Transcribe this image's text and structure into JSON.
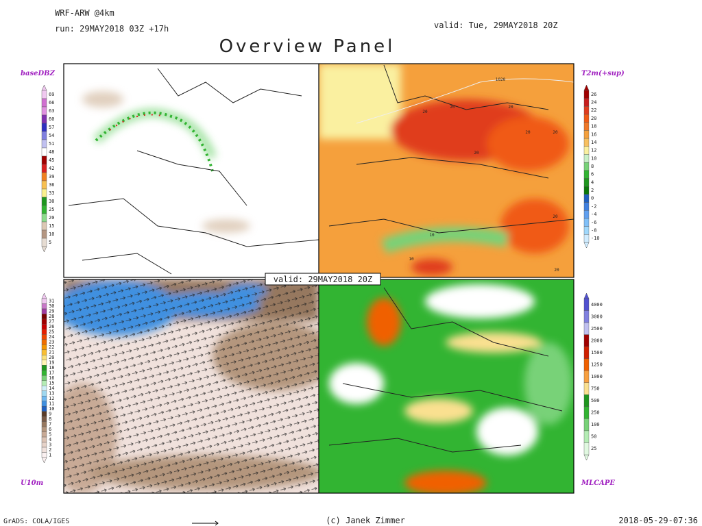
{
  "header": {
    "model": "WRF-ARW @4km",
    "run": "run: 29MAY2018 03Z +17h",
    "valid": "valid: Tue, 29MAY2018 20Z",
    "title": "Overview Panel"
  },
  "valid_box": "valid: 29MAY2018 20Z",
  "panels": [
    {
      "label": "baseDBZ",
      "ticks": [
        69,
        66,
        63,
        60,
        57,
        54,
        51,
        48,
        45,
        42,
        39,
        36,
        33,
        30,
        25,
        20,
        15,
        10,
        5
      ],
      "colors": [
        "#f0c8f0",
        "#d070d0",
        "#e090e0",
        "#8030b0",
        "#3030c0",
        "#8080e0",
        "#c0c0f0",
        "#ffffff",
        "#a00000",
        "#d82020",
        "#f08020",
        "#f8c050",
        "#faf08c",
        "#1e961e",
        "#32b432",
        "#8cdc8c",
        "#dcc8b4",
        "#b49682",
        "#e6dcd2"
      ]
    },
    {
      "label": "T2m(+sup)",
      "ticks": [
        26,
        24,
        22,
        20,
        18,
        16,
        14,
        12,
        10,
        8,
        6,
        4,
        2,
        0,
        -2,
        -4,
        -6,
        -8,
        -10
      ],
      "colors": [
        "#a00000",
        "#c81e1e",
        "#e03c1e",
        "#f05a14",
        "#f07828",
        "#f5a03c",
        "#f8c060",
        "#faf0a0",
        "#c8f0c8",
        "#78d278",
        "#32b432",
        "#1e961e",
        "#0a780a",
        "#2060c0",
        "#4080e0",
        "#60a0f0",
        "#80c0f8",
        "#a0d8fc",
        "#d0ecff"
      ],
      "map_labels": [
        "1020",
        "20",
        "20",
        "20",
        "20",
        "20",
        "20",
        "10",
        "10",
        "20",
        "20"
      ]
    },
    {
      "label": "U10m",
      "ticks": [
        31,
        30,
        29,
        28,
        27,
        26,
        25,
        24,
        23,
        22,
        21,
        20,
        19,
        18,
        17,
        16,
        15,
        14,
        13,
        12,
        11,
        10,
        9,
        8,
        7,
        6,
        5,
        4,
        3,
        2,
        1
      ],
      "colors": [
        "#f0c8f0",
        "#c878c8",
        "#a03ca0",
        "#780000",
        "#a00000",
        "#c80000",
        "#e61e00",
        "#f04600",
        "#f06e00",
        "#f59600",
        "#f8be32",
        "#fae178",
        "#fff5b4",
        "#1e961e",
        "#32b432",
        "#78d278",
        "#b4ecb4",
        "#d0f0f8",
        "#a0d8f0",
        "#70b8f0",
        "#4090e0",
        "#2060c0",
        "#5a3c28",
        "#785a46",
        "#96785f",
        "#b4967d",
        "#c8aa96",
        "#dcc3b4",
        "#e6d2c8",
        "#f0e1dc",
        "#faf0f0"
      ]
    },
    {
      "label": "MLCAPE",
      "ticks": [
        4000,
        3000,
        2500,
        2000,
        1500,
        1250,
        1000,
        750,
        500,
        250,
        100,
        50,
        25
      ],
      "colors": [
        "#5050d0",
        "#8080e0",
        "#c0c0f0",
        "#a00000",
        "#d02000",
        "#f06000",
        "#f8a040",
        "#fae090",
        "#1e961e",
        "#32b432",
        "#78d278",
        "#b4ecb4",
        "#e0f8e0"
      ]
    }
  ],
  "footer": {
    "left": "GrADS: COLA/IGES",
    "center": "(c) Janek Zimmer",
    "right": "2018-05-29-07:36"
  }
}
